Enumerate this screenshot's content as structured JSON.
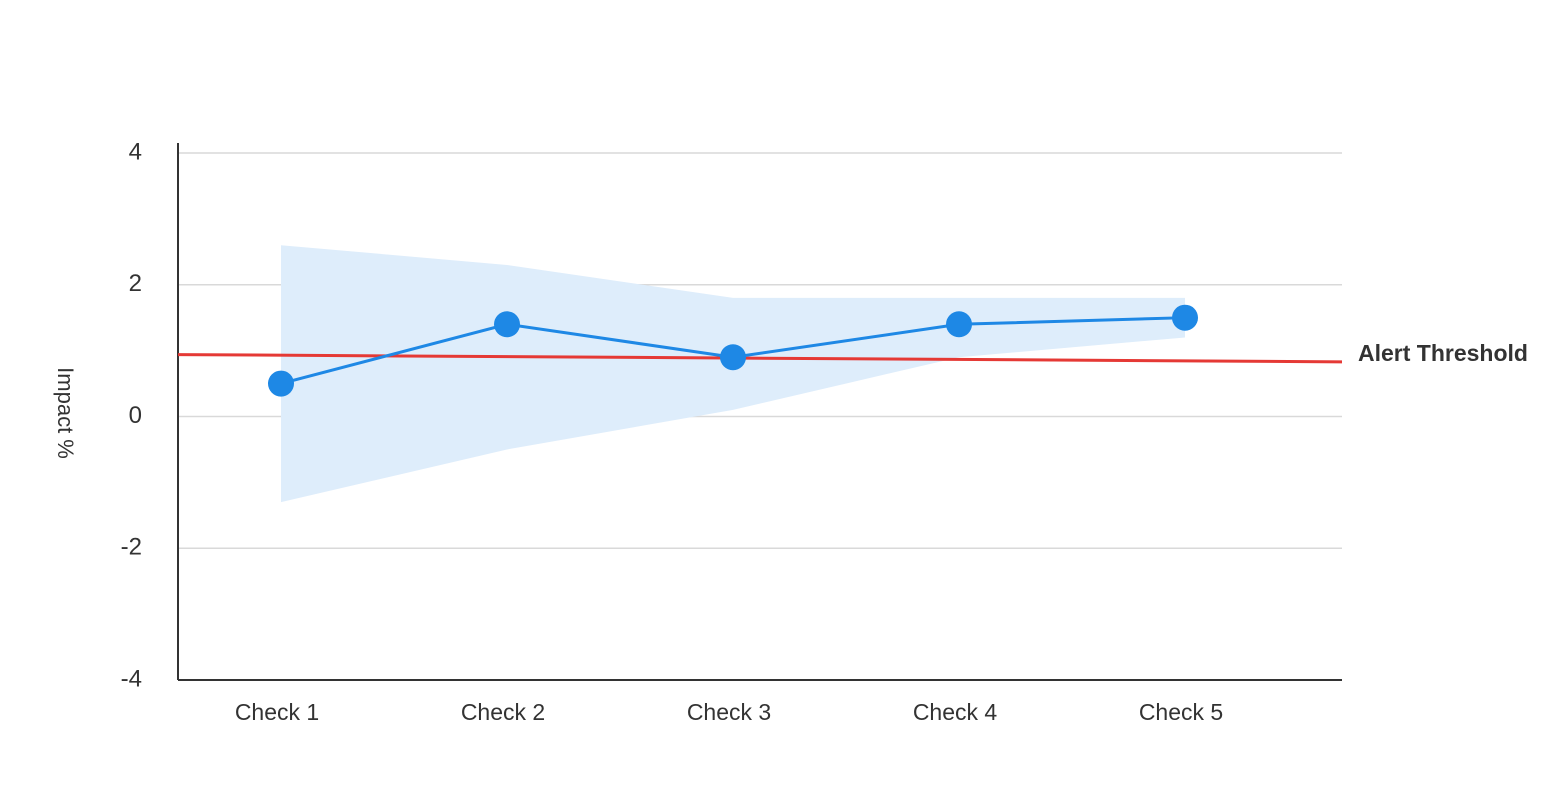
{
  "chart_data": {
    "type": "line",
    "y_label": "Impact %",
    "categories": [
      "Check 1",
      "Check 2",
      "Check 3",
      "Check 4",
      "Check 5"
    ],
    "series": [
      {
        "name": "Impact",
        "color": "#1e88e5",
        "values": [
          0.5,
          1.4,
          0.9,
          1.4,
          1.5
        ]
      }
    ],
    "band": {
      "color": "#deedfb",
      "upper": [
        2.6,
        2.3,
        1.8,
        1.8,
        1.8
      ],
      "lower": [
        -1.3,
        -0.5,
        0.1,
        0.9,
        1.2
      ]
    },
    "threshold": {
      "name": "Alert Threshold",
      "color": "#e53935",
      "start": 0.94,
      "end": 0.83
    },
    "ylim": [
      -4,
      4
    ],
    "yticks": [
      -4,
      -2,
      0,
      2,
      4
    ],
    "grid": true
  }
}
